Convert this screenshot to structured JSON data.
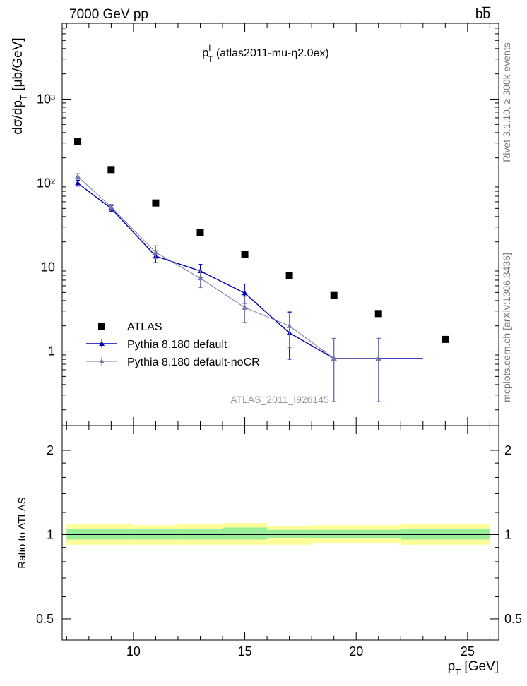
{
  "header": {
    "energy_label": "7000 GeV pp",
    "process_label": "bb̅"
  },
  "side_labels": {
    "rivet": "Rivet 3.1.10, ≥ 300k events",
    "mcplots": "mcplots.cern.ch [arXiv:1306.3436]"
  },
  "watermark": "ATLAS_2011_I926145",
  "chart_data": [
    {
      "type": "scatter",
      "panel": "main",
      "title": "p_T^l (atlas2011-mu-η2.0ex)",
      "title_parts": {
        "p": "p",
        "sup": "l",
        "sub": "T",
        "rest": " (atlas2011-mu-η2.0ex)"
      },
      "ylabel": "dσ/dp_T [μb/GeV]",
      "ylabel_parts": {
        "pre": "dσ/dp",
        "sub": "T",
        "post": " [μb/GeV]"
      },
      "yscale": "log",
      "ylim": [
        0.13,
        8000
      ],
      "xlim": [
        6.8,
        26.4
      ],
      "y_tick_labels": [
        "1",
        "10",
        "10²",
        "10³"
      ],
      "y_tick_values": [
        1,
        10,
        100,
        1000
      ],
      "legend_position": "middle-left",
      "series": [
        {
          "name": "ATLAS",
          "color": "#000000",
          "marker": "square",
          "x": [
            7.5,
            9,
            11,
            13,
            15,
            17,
            19,
            21,
            24
          ],
          "y": [
            310,
            145,
            58,
            26,
            14.2,
            8.0,
            4.6,
            2.8,
            1.38
          ]
        },
        {
          "name": "Pythia 8.180 default",
          "color": "#0000b0",
          "marker": "triangle",
          "x": [
            7.5,
            9,
            11,
            13,
            15,
            17,
            19,
            21
          ],
          "y": [
            100,
            50,
            13.5,
            9.0,
            4.9,
            1.65,
            0.82,
            0.82
          ],
          "err_low": [
            8,
            4,
            2.2,
            1.5,
            1.2,
            0.85,
            0.57,
            0.57
          ],
          "err_high": [
            8,
            4,
            2.2,
            1.8,
            1.4,
            1.25,
            0.6,
            0.6
          ],
          "x_bins": [
            [
              19,
              23
            ]
          ]
        },
        {
          "name": "Pythia 8.180 default-noCR",
          "color": "#7777aa",
          "marker": "triangle",
          "x": [
            7.5,
            9,
            11,
            13,
            15,
            17,
            19,
            21
          ],
          "y": [
            120,
            52,
            15.0,
            7.4,
            3.3,
            2.0,
            0.82,
            0.82
          ],
          "err_low": [
            9,
            4,
            2.4,
            1.7,
            1.1,
            0.9,
            0.57,
            0.57
          ],
          "err_high": [
            10,
            4,
            3.0,
            1.8,
            1.2,
            0.95,
            0.6,
            0.6
          ]
        }
      ]
    },
    {
      "type": "area",
      "panel": "ratio",
      "xlabel": "p_T [GeV]",
      "xlabel_parts": {
        "p": "p",
        "sub": "T",
        "post": " [GeV]"
      },
      "ylabel": "Ratio to ATLAS",
      "yscale": "log",
      "ylim": [
        0.42,
        2.45
      ],
      "xlim": [
        6.8,
        26.4
      ],
      "x_tick_labels": [
        "10",
        "15",
        "20",
        "25"
      ],
      "x_tick_values": [
        10,
        15,
        20,
        25
      ],
      "y_tick_labels": [
        "0.5",
        "1",
        "2"
      ],
      "y_tick_values": [
        0.5,
        1,
        2
      ],
      "bin_edges": [
        7,
        10,
        12,
        14,
        16,
        18,
        22,
        26
      ],
      "bands": [
        {
          "name": "total uncertainty",
          "color": "#ffff99",
          "low": [
            0.92,
            0.92,
            0.92,
            0.92,
            0.92,
            0.93,
            0.92
          ],
          "high": [
            1.09,
            1.08,
            1.09,
            1.1,
            1.07,
            1.08,
            1.09
          ]
        },
        {
          "name": "statistical uncertainty",
          "color": "#99ee99",
          "low": [
            0.96,
            0.96,
            0.96,
            0.96,
            0.97,
            0.97,
            0.96
          ],
          "high": [
            1.05,
            1.05,
            1.05,
            1.06,
            1.04,
            1.04,
            1.05
          ]
        }
      ],
      "reference_line": 1
    }
  ]
}
